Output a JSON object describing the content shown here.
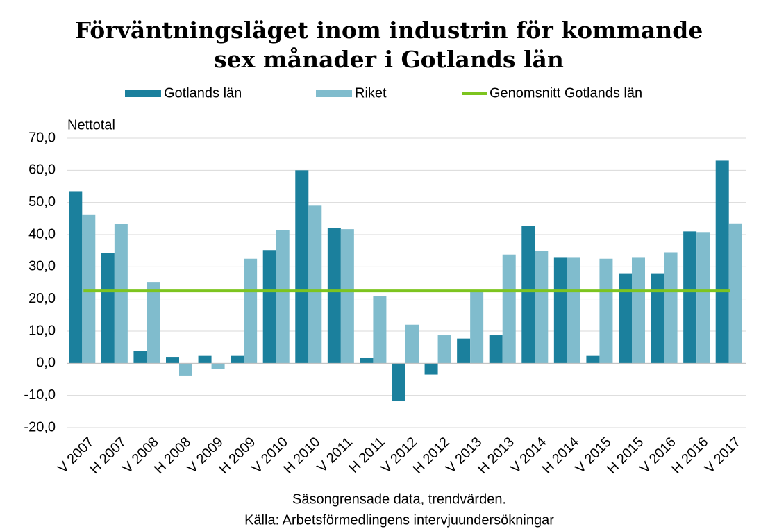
{
  "chart_data": {
    "type": "bar",
    "title_lines": [
      "Förväntningsläget inom industrin för kommande",
      "sex månader i Gotlands län"
    ],
    "ylabel": "Nettotal",
    "footer": [
      "Säsongrensade data, trendvärden.",
      "Källa: Arbetsförmedlingens  intervjuundersökningar"
    ],
    "categories": [
      "V 2007",
      "H 2007",
      "V 2008",
      "H 2008",
      "V 2009",
      "H 2009",
      "V 2010",
      "H 2010",
      "V 2011",
      "H 2011",
      "V 2012",
      "H 2012",
      "V 2013",
      "H 2013",
      "V 2014",
      "H 2014",
      "V 2015",
      "H 2015",
      "V 2016",
      "H 2016",
      "V 2017"
    ],
    "series": [
      {
        "name": "Gotlands län",
        "color": "#1b809d",
        "values": [
          53.5,
          34.2,
          3.8,
          2.0,
          2.3,
          2.3,
          35.2,
          60.0,
          42.0,
          1.8,
          -11.8,
          -3.5,
          7.7,
          8.7,
          42.7,
          33.0,
          2.3,
          28.0,
          28.0,
          41.0,
          63.0
        ]
      },
      {
        "name": "Riket",
        "color": "#80bccd",
        "values": [
          46.3,
          43.3,
          25.3,
          -3.8,
          -1.8,
          32.5,
          41.3,
          49.0,
          41.7,
          20.8,
          12.0,
          8.7,
          22.3,
          33.8,
          35.0,
          33.0,
          32.5,
          33.0,
          34.5,
          40.8,
          43.5
        ]
      }
    ],
    "average": {
      "name": "Genomsnitt Gotlands län",
      "color": "#7dc41f",
      "value": 22.5
    },
    "ylim": [
      -20,
      70
    ],
    "yticks": [
      {
        "value": -20,
        "label": "-20,0"
      },
      {
        "value": -10,
        "label": "-10,0"
      },
      {
        "value": 0,
        "label": "0,0"
      },
      {
        "value": 10,
        "label": "10,0"
      },
      {
        "value": 20,
        "label": "20,0"
      },
      {
        "value": 30,
        "label": "30,0"
      },
      {
        "value": 40,
        "label": "40,0"
      },
      {
        "value": 50,
        "label": "50,0"
      },
      {
        "value": 60,
        "label": "60,0"
      },
      {
        "value": 70,
        "label": "70,0"
      }
    ],
    "grid": true,
    "legend": "top"
  }
}
